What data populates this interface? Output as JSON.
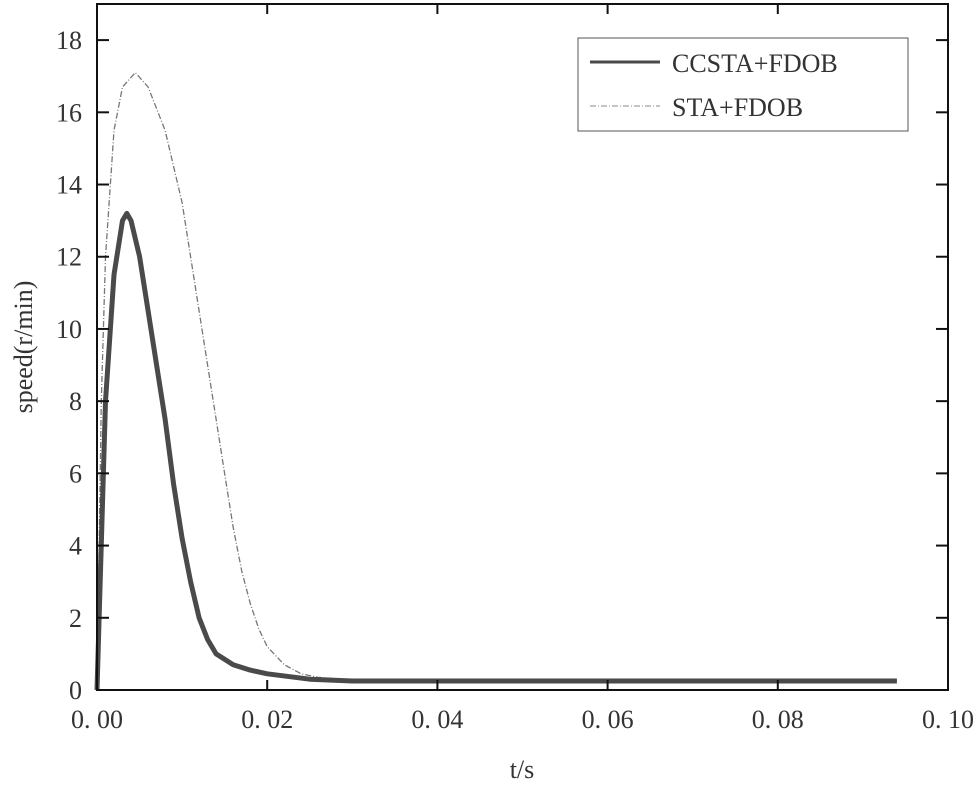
{
  "chart_data": {
    "type": "line",
    "title": "",
    "xlabel": "t/s",
    "ylabel": "speed(r/min)",
    "xlim": [
      0,
      0.1
    ],
    "ylim": [
      0,
      19
    ],
    "xticks": [
      0,
      0.02,
      0.04,
      0.06,
      0.08,
      0.1
    ],
    "xtick_labels": [
      "0. 00",
      "0. 02",
      "0. 04",
      "0. 06",
      "0. 08",
      "0. 10"
    ],
    "yticks": [
      0,
      2,
      4,
      6,
      8,
      10,
      12,
      14,
      16,
      18
    ],
    "ytick_labels": [
      "0",
      "2",
      "4",
      "6",
      "8",
      "10",
      "12",
      "14",
      "16",
      "18"
    ],
    "grid": false,
    "legend_position": "top-right",
    "series": [
      {
        "name": "CCSTA+FDOB",
        "color": "#4a4a4a",
        "style": "thick-solid",
        "x": [
          0,
          0.001,
          0.002,
          0.003,
          0.0035,
          0.004,
          0.005,
          0.006,
          0.007,
          0.008,
          0.009,
          0.01,
          0.011,
          0.012,
          0.013,
          0.014,
          0.016,
          0.018,
          0.02,
          0.025,
          0.03,
          0.094
        ],
        "y": [
          0,
          8,
          11.5,
          13,
          13.2,
          13,
          12,
          10.5,
          9,
          7.5,
          5.7,
          4.2,
          3.0,
          2.0,
          1.4,
          1.0,
          0.7,
          0.55,
          0.45,
          0.3,
          0.25,
          0.25
        ]
      },
      {
        "name": "STA+FDOB",
        "color": "#777777",
        "style": "thin-dashdot",
        "x": [
          0,
          0.0005,
          0.001,
          0.002,
          0.003,
          0.0045,
          0.006,
          0.008,
          0.01,
          0.012,
          0.013,
          0.014,
          0.015,
          0.016,
          0.017,
          0.018,
          0.019,
          0.02,
          0.022,
          0.024,
          0.026,
          0.03,
          0.094
        ],
        "y": [
          0,
          8,
          12,
          15.5,
          16.7,
          17.1,
          16.7,
          15.5,
          13.5,
          10.5,
          9,
          7.5,
          6,
          4.5,
          3.3,
          2.4,
          1.7,
          1.2,
          0.7,
          0.45,
          0.35,
          0.28,
          0.27
        ]
      }
    ]
  }
}
